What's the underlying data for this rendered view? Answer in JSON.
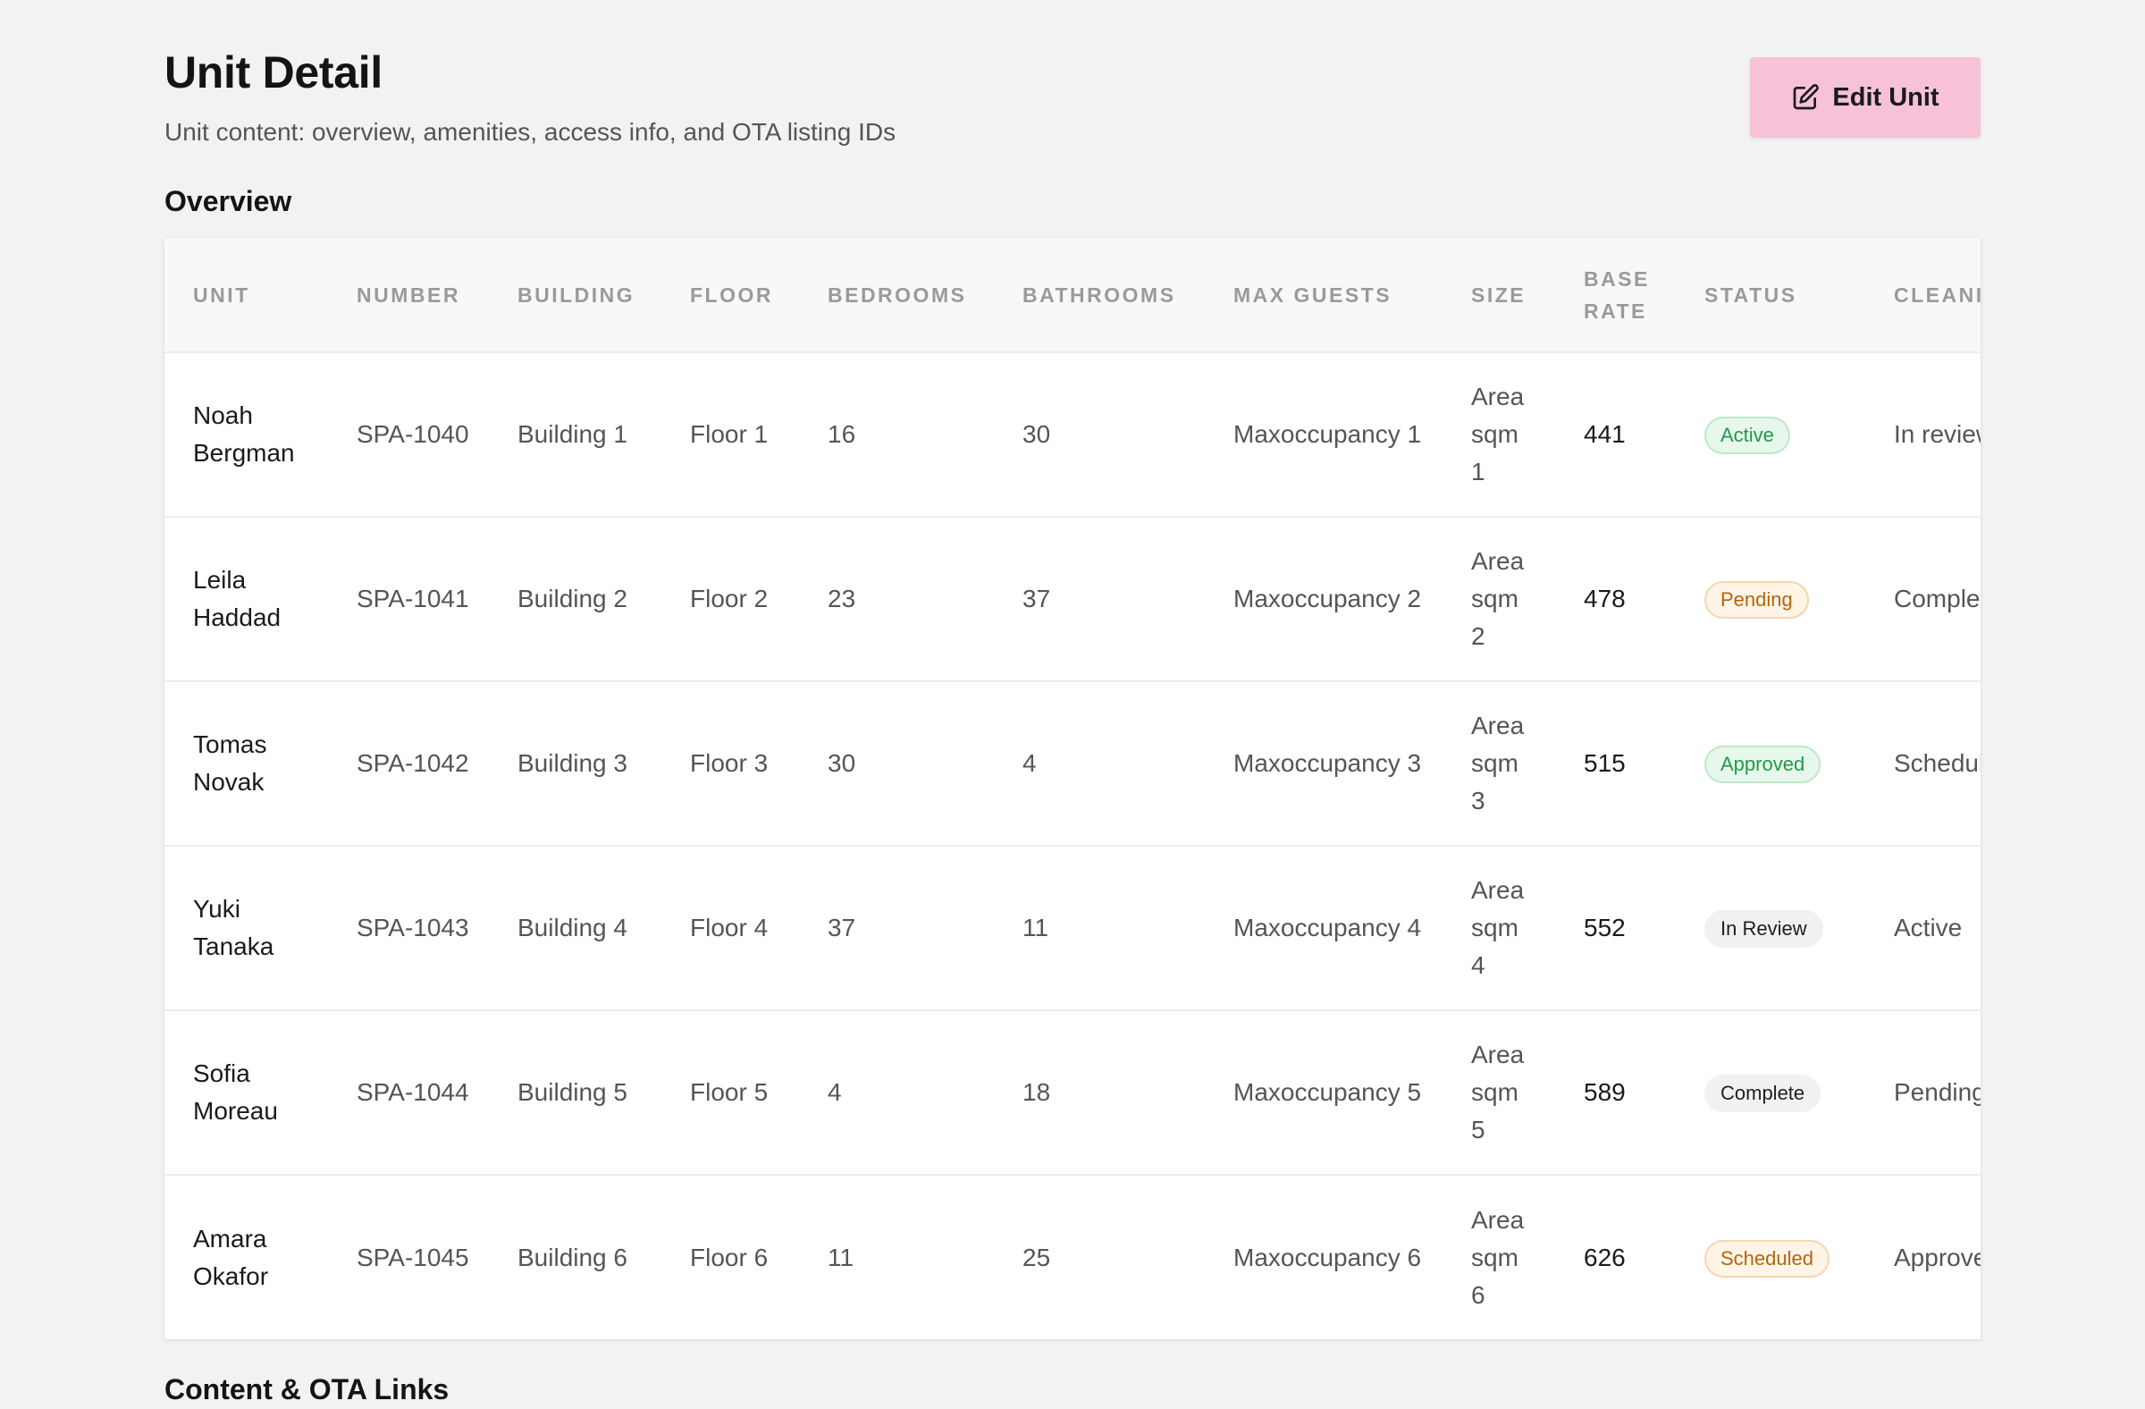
{
  "header": {
    "title": "Unit Detail",
    "subtitle": "Unit content: overview, amenities, access info, and OTA listing IDs",
    "edit_label": "Edit Unit"
  },
  "sections": {
    "overview": "Overview",
    "content": "Content & OTA Links"
  },
  "table": {
    "columns": [
      "UNIT",
      "NUMBER",
      "BUILDING",
      "FLOOR",
      "BEDROOMS",
      "BATHROOMS",
      "MAX GUESTS",
      "SIZE",
      "BASE RATE",
      "STATUS",
      "CLEANING"
    ],
    "rows": [
      {
        "unit": "Noah Bergman",
        "number": "SPA-1040",
        "building": "Building 1",
        "floor": "Floor 1",
        "bedrooms": "16",
        "bathrooms": "30",
        "max_guests": "Maxoccupancy 1",
        "size": "Area sqm 1",
        "base_rate": "441",
        "status": "Active",
        "status_color": "green",
        "cleaning": "In review"
      },
      {
        "unit": "Leila Haddad",
        "number": "SPA-1041",
        "building": "Building 2",
        "floor": "Floor 2",
        "bedrooms": "23",
        "bathrooms": "37",
        "max_guests": "Maxoccupancy 2",
        "size": "Area sqm 2",
        "base_rate": "478",
        "status": "Pending",
        "status_color": "amber",
        "cleaning": "Complete"
      },
      {
        "unit": "Tomas Novak",
        "number": "SPA-1042",
        "building": "Building 3",
        "floor": "Floor 3",
        "bedrooms": "30",
        "bathrooms": "4",
        "max_guests": "Maxoccupancy 3",
        "size": "Area sqm 3",
        "base_rate": "515",
        "status": "Approved",
        "status_color": "green",
        "cleaning": "Scheduled"
      },
      {
        "unit": "Yuki Tanaka",
        "number": "SPA-1043",
        "building": "Building 4",
        "floor": "Floor 4",
        "bedrooms": "37",
        "bathrooms": "11",
        "max_guests": "Maxoccupancy 4",
        "size": "Area sqm 4",
        "base_rate": "552",
        "status": "In Review",
        "status_color": "gray",
        "cleaning": "Active"
      },
      {
        "unit": "Sofia Moreau",
        "number": "SPA-1044",
        "building": "Building 5",
        "floor": "Floor 5",
        "bedrooms": "4",
        "bathrooms": "18",
        "max_guests": "Maxoccupancy 5",
        "size": "Area sqm 5",
        "base_rate": "589",
        "status": "Complete",
        "status_color": "gray",
        "cleaning": "Pending"
      },
      {
        "unit": "Amara Okafor",
        "number": "SPA-1045",
        "building": "Building 6",
        "floor": "Floor 6",
        "bedrooms": "11",
        "bathrooms": "25",
        "max_guests": "Maxoccupancy 6",
        "size": "Area sqm 6",
        "base_rate": "626",
        "status": "Scheduled",
        "status_color": "amber",
        "cleaning": "Approved"
      }
    ]
  },
  "icons": {
    "edit": "pencil-square-icon"
  }
}
